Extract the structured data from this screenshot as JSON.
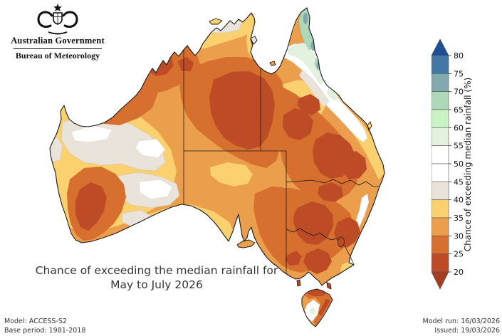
{
  "branding": {
    "government": "Australian Government",
    "agency": "Bureau of Meteorology"
  },
  "title": {
    "line1": "Chance of exceeding the median rainfall for",
    "line2": "May to July 2026"
  },
  "colorbar": {
    "axis_label": "Chance of exceeding median rainfall (%)",
    "tick_labels": [
      "80",
      "75",
      "70",
      "65",
      "60",
      "55",
      "50",
      "45",
      "40",
      "35",
      "30",
      "25",
      "20"
    ],
    "bins": [
      {
        "label": "above 80",
        "color": "#1e4e96"
      },
      {
        "label": "75-80",
        "color": "#4377a4"
      },
      {
        "label": "70-75",
        "color": "#81a9ae"
      },
      {
        "label": "65-70",
        "color": "#afd7ba"
      },
      {
        "label": "60-65",
        "color": "#c9f3c4"
      },
      {
        "label": "55-60",
        "color": "#e3f2df"
      },
      {
        "label": "50-55",
        "color": "#ffffff"
      },
      {
        "label": "45-50",
        "color": "#ffffff"
      },
      {
        "label": "40-45",
        "color": "#e9e3da"
      },
      {
        "label": "35-40",
        "color": "#fad16e"
      },
      {
        "label": "30-35",
        "color": "#eb9e4b"
      },
      {
        "label": "25-30",
        "color": "#d76f2e"
      },
      {
        "label": "20-25",
        "color": "#bc4b26"
      },
      {
        "label": "below 20",
        "color": "#a83c1e"
      }
    ]
  },
  "footer": {
    "model": "Model: ACCESS-S2",
    "base_period": "Base period: 1981-2018",
    "model_run": "Model run: 16/03/2026",
    "issued": "Issued: 19/03/2026"
  },
  "chart_data": {
    "type": "heatmap",
    "title": "Chance of exceeding the median rainfall for May to July 2026",
    "geography": "Australia with state borders and Tasmania",
    "colorbar_label": "Chance of exceeding median rainfall (%)",
    "colorbar_ticks": [
      20,
      25,
      30,
      35,
      40,
      45,
      50,
      55,
      60,
      65,
      70,
      75,
      80
    ],
    "legend_position": "right",
    "regions": [
      {
        "area": "Cape York Peninsula tip (far north QLD)",
        "value_pct": "60-75"
      },
      {
        "area": "Mid Cape York and north QLD east coast band",
        "value_pct": "45-60"
      },
      {
        "area": "Queensland east coastal strip",
        "value_pct": "35-40"
      },
      {
        "area": "Central NT, Barkly and central QLD interior",
        "value_pct": "20-25"
      },
      {
        "area": "Kimberley and Pilbara (north WA)",
        "value_pct": "20-30"
      },
      {
        "area": "Central-west WA",
        "value_pct": "35-50"
      },
      {
        "area": "Southwest WA",
        "value_pct": "20-25"
      },
      {
        "area": "Top End NT coast",
        "value_pct": "35-45"
      },
      {
        "area": "South Australia",
        "value_pct": "25-35"
      },
      {
        "area": "Inland NSW and Victoria",
        "value_pct": "20-30"
      },
      {
        "area": "NSW east coast strip",
        "value_pct": "35-50"
      },
      {
        "area": "Tasmania north and east",
        "value_pct": "20-30"
      },
      {
        "area": "Tasmania centre and southwest",
        "value_pct": "45-55"
      }
    ]
  }
}
